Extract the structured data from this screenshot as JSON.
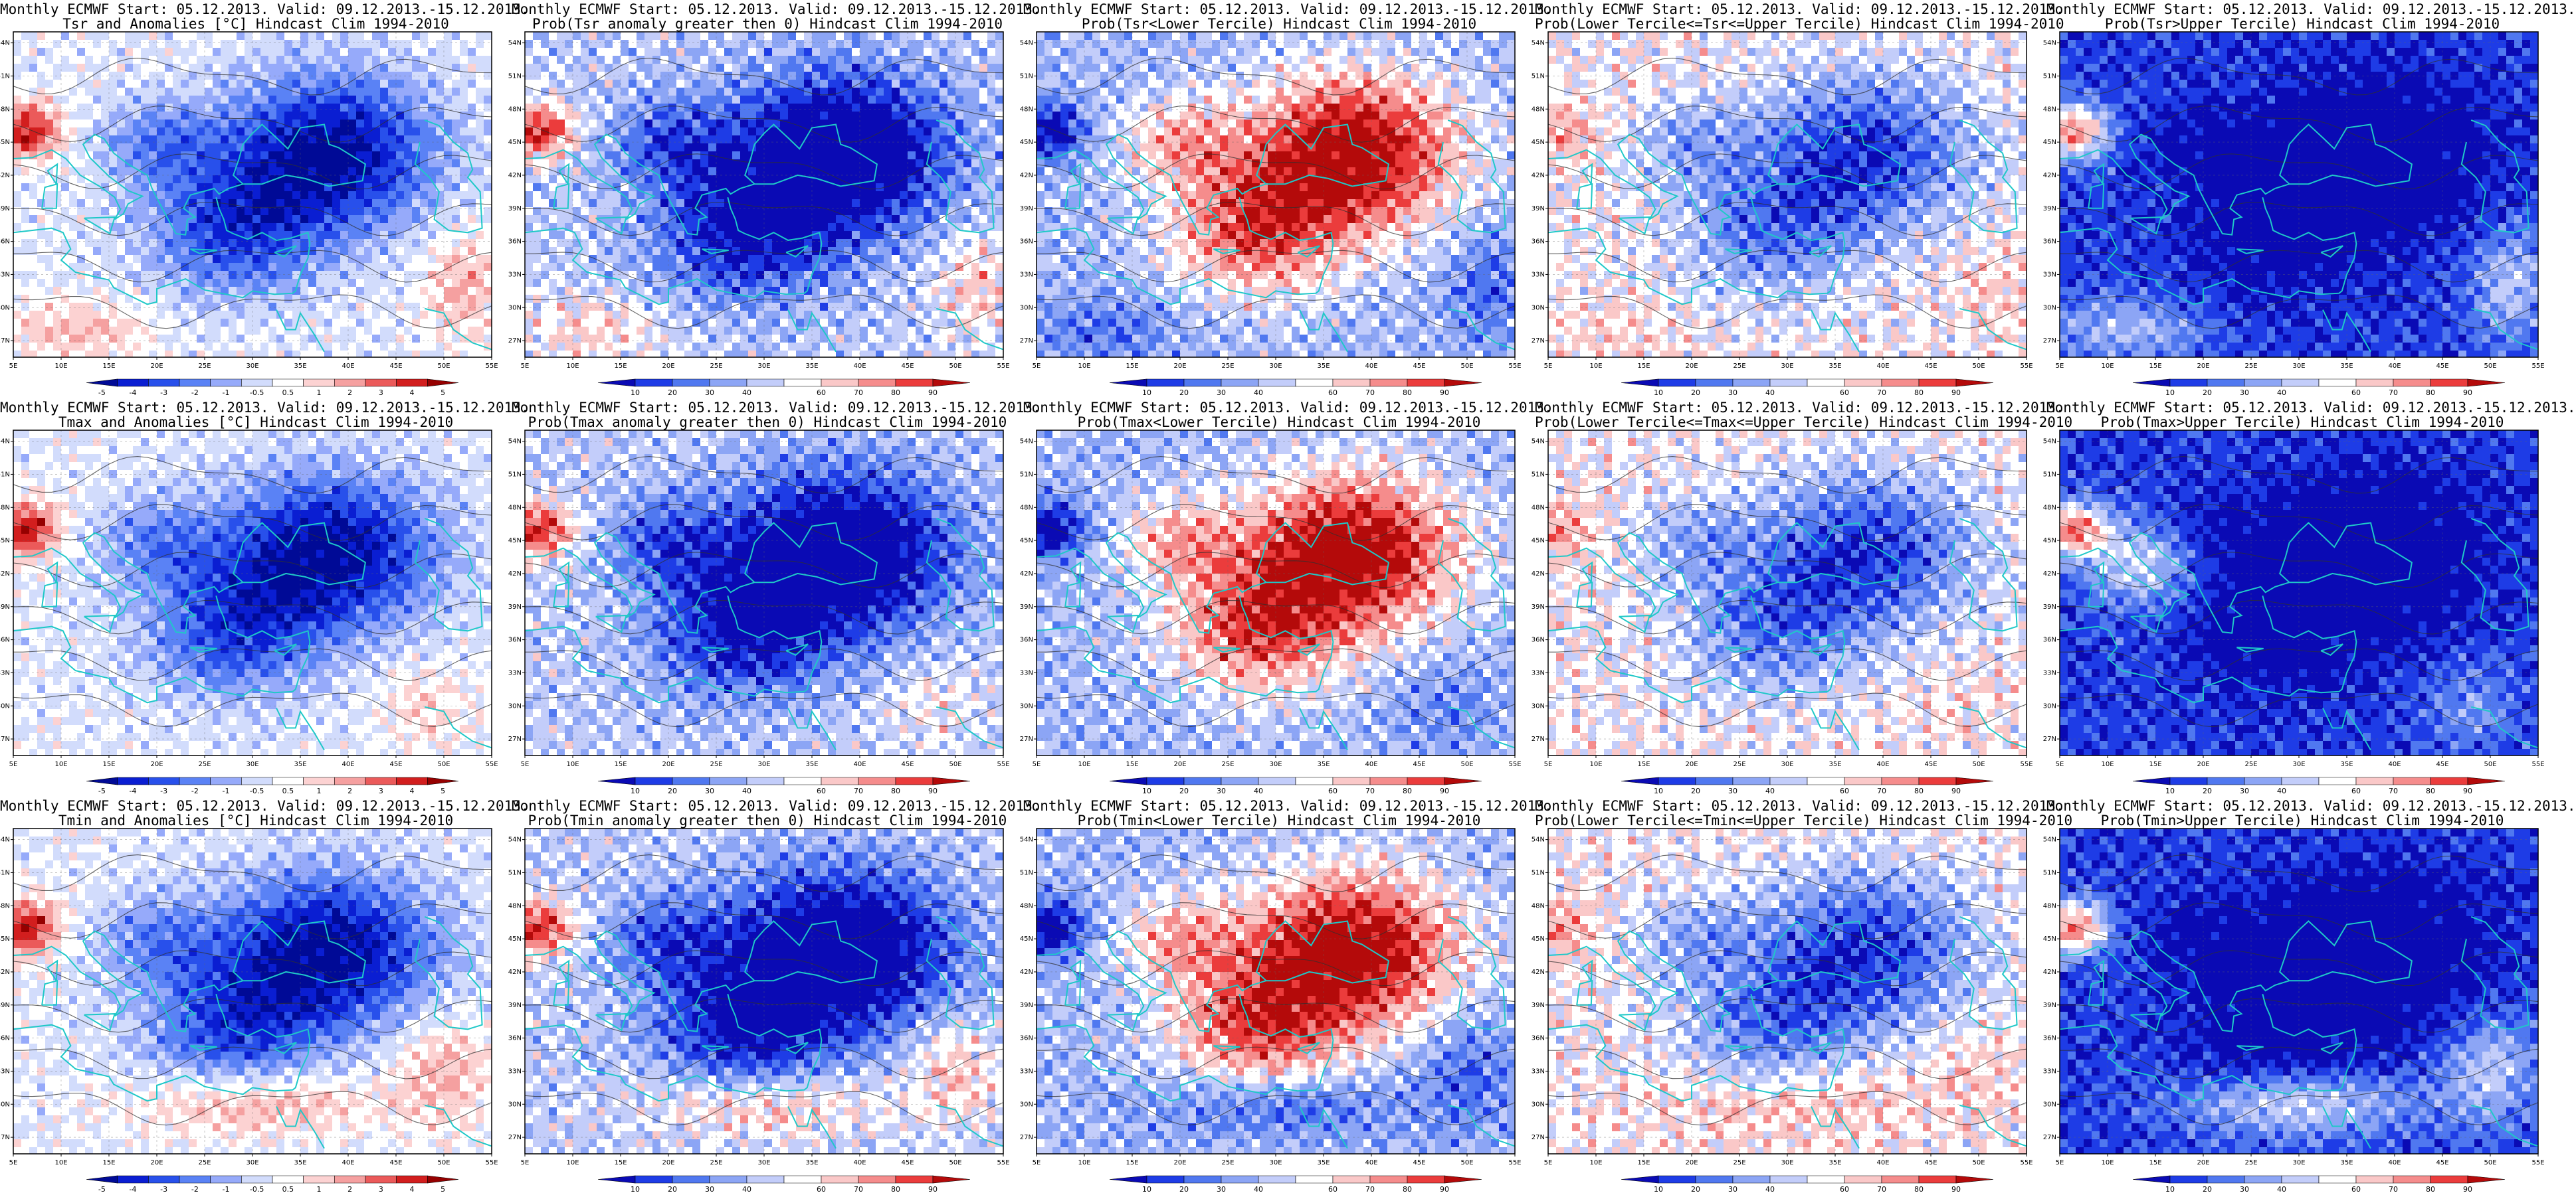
{
  "lon_labels": [
    "5E",
    "10E",
    "15E",
    "20E",
    "25E",
    "30E",
    "35E",
    "40E",
    "45E",
    "50E",
    "55E"
  ],
  "lat_labels": [
    "27N",
    "30N",
    "33N",
    "36N",
    "39N",
    "42N",
    "45N",
    "48N",
    "51N",
    "54N"
  ],
  "colors": {
    "coast": "#1fc8c8",
    "contour": "#303030",
    "prob_scale": [
      "#0a0ab4",
      "#1e3ce6",
      "#5078f0",
      "#8ca5f5",
      "#c3cdfa",
      "#ffffff",
      "#fac8c8",
      "#f58c8c",
      "#eb3c3c",
      "#b40a0a"
    ],
    "anom_scale": [
      "#000a96",
      "#0a1ed2",
      "#2850eb",
      "#5a82f5",
      "#96aafa",
      "#d2dcfc",
      "#ffffff",
      "#fcd2d2",
      "#f5a0a0",
      "#eb5a5a",
      "#d21e1e",
      "#960000"
    ]
  },
  "panels": [
    {
      "title1": "Monthly ECMWF Start: 05.12.2013. Valid: 09.12.2013.-15.12.2013.",
      "title2": "Tsr and Anomalies [°C] Hindcast Clim 1994-2010",
      "field": "anom",
      "var": "tsr",
      "cbar": "anom",
      "cbar_labels": [
        "-5",
        "-4",
        "-3",
        "-2",
        "-1",
        "-0.5",
        "0.5",
        "1",
        "2",
        "3",
        "4",
        "5"
      ]
    },
    {
      "title1": "Monthly ECMWF Start: 05.12.2013. Valid: 09.12.2013.-15.12.2013.",
      "title2": "Prob(Tsr anomaly greater then 0) Hindcast Clim 1994-2010",
      "field": "pgt0",
      "var": "tsr",
      "cbar": "prob",
      "cbar_labels": [
        "10",
        "20",
        "30",
        "40",
        "60",
        "70",
        "80",
        "90"
      ]
    },
    {
      "title1": "Monthly ECMWF Start: 05.12.2013. Valid: 09.12.2013.-15.12.2013.",
      "title2": "Prob(Tsr<Lower Tercile) Hindcast Clim 1994-2010",
      "field": "plow",
      "var": "tsr",
      "cbar": "prob",
      "cbar_labels": [
        "10",
        "20",
        "30",
        "40",
        "60",
        "70",
        "80",
        "90"
      ]
    },
    {
      "title1": "Monthly ECMWF Start: 05.12.2013. Valid: 09.12.2013.-15.12.2013.",
      "title2": "Prob(Lower Tercile<=Tsr<=Upper Tercile) Hindcast Clim 1994-2010",
      "field": "pmid",
      "var": "tsr",
      "cbar": "prob",
      "cbar_labels": [
        "10",
        "20",
        "30",
        "40",
        "60",
        "70",
        "80",
        "90"
      ]
    },
    {
      "title1": "Monthly ECMWF Start: 05.12.2013. Valid: 09.12.2013.-15.12.2013.",
      "title2": "Prob(Tsr>Upper Tercile) Hindcast Clim 1994-2010",
      "field": "pup",
      "var": "tsr",
      "cbar": "prob",
      "cbar_labels": [
        "10",
        "20",
        "30",
        "40",
        "60",
        "70",
        "80",
        "90"
      ]
    },
    {
      "title1": "Monthly ECMWF Start: 05.12.2013. Valid: 09.12.2013.-15.12.2013.",
      "title2": "Tmax and Anomalies [°C] Hindcast Clim 1994-2010",
      "field": "anom",
      "var": "tmax",
      "cbar": "anom",
      "cbar_labels": [
        "-5",
        "-4",
        "-3",
        "-2",
        "-1",
        "-0.5",
        "0.5",
        "1",
        "2",
        "3",
        "4",
        "5"
      ]
    },
    {
      "title1": "Monthly ECMWF Start: 05.12.2013. Valid: 09.12.2013.-15.12.2013.",
      "title2": "Prob(Tmax anomaly greater then 0) Hindcast Clim 1994-2010",
      "field": "pgt0",
      "var": "tmax",
      "cbar": "prob",
      "cbar_labels": [
        "10",
        "20",
        "30",
        "40",
        "60",
        "70",
        "80",
        "90"
      ]
    },
    {
      "title1": "Monthly ECMWF Start: 05.12.2013. Valid: 09.12.2013.-15.12.2013.",
      "title2": "Prob(Tmax<Lower Tercile) Hindcast Clim 1994-2010",
      "field": "plow",
      "var": "tmax",
      "cbar": "prob",
      "cbar_labels": [
        "10",
        "20",
        "30",
        "40",
        "60",
        "70",
        "80",
        "90"
      ]
    },
    {
      "title1": "Monthly ECMWF Start: 05.12.2013. Valid: 09.12.2013.-15.12.2013.",
      "title2": "Prob(Lower Tercile<=Tmax<=Upper Tercile) Hindcast Clim 1994-2010",
      "field": "pmid",
      "var": "tmax",
      "cbar": "prob",
      "cbar_labels": [
        "10",
        "20",
        "30",
        "40",
        "60",
        "70",
        "80",
        "90"
      ]
    },
    {
      "title1": "Monthly ECMWF Start: 05.12.2013. Valid: 09.12.2013.-15.12.2013.",
      "title2": "Prob(Tmax>Upper Tercile) Hindcast Clim 1994-2010",
      "field": "pup",
      "var": "tmax",
      "cbar": "prob",
      "cbar_labels": [
        "10",
        "20",
        "30",
        "40",
        "60",
        "70",
        "80",
        "90"
      ]
    },
    {
      "title1": "Monthly ECMWF Start: 05.12.2013. Valid: 09.12.2013.-15.12.2013.",
      "title2": "Tmin and Anomalies [°C] Hindcast Clim 1994-2010",
      "field": "anom",
      "var": "tmin",
      "cbar": "anom",
      "cbar_labels": [
        "-5",
        "-4",
        "-3",
        "-2",
        "-1",
        "-0.5",
        "0.5",
        "1",
        "2",
        "3",
        "4",
        "5"
      ]
    },
    {
      "title1": "Monthly ECMWF Start: 05.12.2013. Valid: 09.12.2013.-15.12.2013.",
      "title2": "Prob(Tmin anomaly greater then 0) Hindcast Clim 1994-2010",
      "field": "pgt0",
      "var": "tmin",
      "cbar": "prob",
      "cbar_labels": [
        "10",
        "20",
        "30",
        "40",
        "60",
        "70",
        "80",
        "90"
      ]
    },
    {
      "title1": "Monthly ECMWF Start: 05.12.2013. Valid: 09.12.2013.-15.12.2013.",
      "title2": "Prob(Tmin<Lower Tercile) Hindcast Clim 1994-2010",
      "field": "plow",
      "var": "tmin",
      "cbar": "prob",
      "cbar_labels": [
        "10",
        "20",
        "30",
        "40",
        "60",
        "70",
        "80",
        "90"
      ]
    },
    {
      "title1": "Monthly ECMWF Start: 05.12.2013. Valid: 09.12.2013.-15.12.2013.",
      "title2": "Prob(Lower Tercile<=Tmin<=Upper Tercile) Hindcast Clim 1994-2010",
      "field": "pmid",
      "var": "tmin",
      "cbar": "prob",
      "cbar_labels": [
        "10",
        "20",
        "30",
        "40",
        "60",
        "70",
        "80",
        "90"
      ]
    },
    {
      "title1": "Monthly ECMWF Start: 05.12.2013. Valid: 09.12.2013.-15.12.2013.",
      "title2": "Prob(Tmin>Upper Tercile) Hindcast Clim 1994-2010",
      "field": "pup",
      "var": "tmin",
      "cbar": "prob",
      "cbar_labels": [
        "10",
        "20",
        "30",
        "40",
        "60",
        "70",
        "80",
        "90"
      ]
    }
  ]
}
